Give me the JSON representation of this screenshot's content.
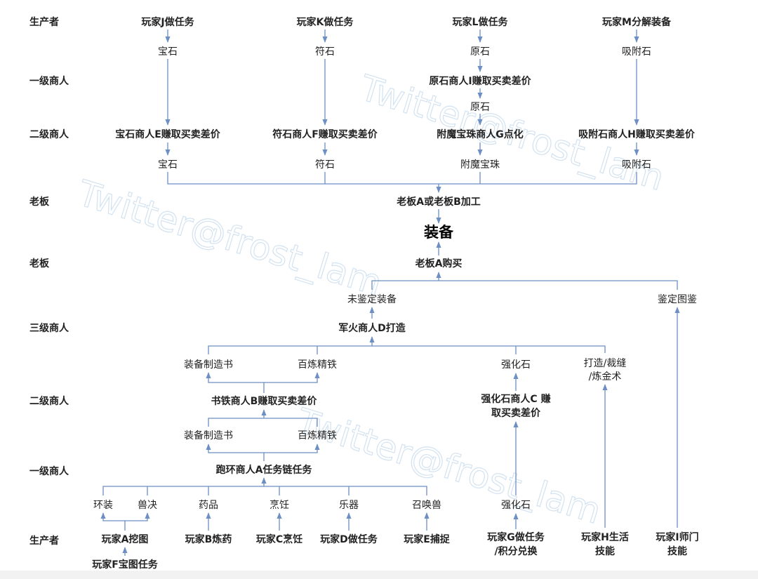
{
  "rows": {
    "producer_top": "生产者",
    "level1_top": "一级商人",
    "level2_top": "二级商人",
    "boss1": "老板",
    "boss2": "老板",
    "level3": "三级商人",
    "level2_bottom": "二级商人",
    "level1_bottom": "一级商人",
    "producer_bottom": "生产者"
  },
  "top": {
    "playerJ": "玩家J做任务",
    "playerK": "玩家K做任务",
    "playerL": "玩家L做任务",
    "playerM": "玩家M分解装备",
    "gem": "宝石",
    "rune": "符石",
    "ore": "原石",
    "absorb": "吸附石",
    "merchantI": "原石商人I赚取买卖差价",
    "ore2": "原石",
    "merchantE": "宝石商人E赚取买卖差价",
    "merchantF": "符石商人F赚取买卖差价",
    "merchantG": "附魔宝珠商人G点化",
    "merchantH": "吸附石商人H赚取买卖差价",
    "gem2": "宝石",
    "rune2": "符石",
    "pearl": "附魔宝珠",
    "absorb2": "吸附石",
    "bossAB": "老板A或老板B加工",
    "equipment": "装备",
    "bossA": "老板A购买"
  },
  "bottom": {
    "unidentified": "未鉴定装备",
    "identifyGuide": "鉴定图鉴",
    "arms_dealer": "军火商人D打造",
    "book1": "装备制造书",
    "iron1": "百炼精铁",
    "strengthen1": "强化石",
    "craft_line1": "打造/裁缝",
    "craft_line2": "/炼金术",
    "bookIronMerchant": "书铁商人B赚取买卖差价",
    "strengthenMerchant_line1": "强化石商人C 赚",
    "strengthenMerchant_line2": "取买卖差价",
    "book2": "装备制造书",
    "iron2": "百炼精铁",
    "runnerA": "跑环商人A任务链任务",
    "ring": "环装",
    "beast": "兽决",
    "medicine": "药品",
    "cooking": "烹饪",
    "instrument": "乐器",
    "summon": "召唤兽",
    "strengthen2": "强化石",
    "playerA": "玩家A挖图",
    "playerF": "玩家F宝图任务",
    "playerB": "玩家B炼药",
    "playerC": "玩家C烹饪",
    "playerD": "玩家D做任务",
    "playerE": "玩家E捕捉",
    "playerG_line1": "玩家G做任务",
    "playerG_line2": "/积分兑换",
    "playerH_line1": "玩家H生活",
    "playerH_line2": "技能",
    "playerI_line1": "玩家I师门",
    "playerI_line2": "技能"
  },
  "watermarks": [
    "Twitter@frost_lam",
    "Twitter@frost_lam",
    "Twitter@frost_lam"
  ],
  "colors": {
    "line": "#6d8fc4",
    "text": "#222222",
    "watermark": "#c9dced"
  }
}
